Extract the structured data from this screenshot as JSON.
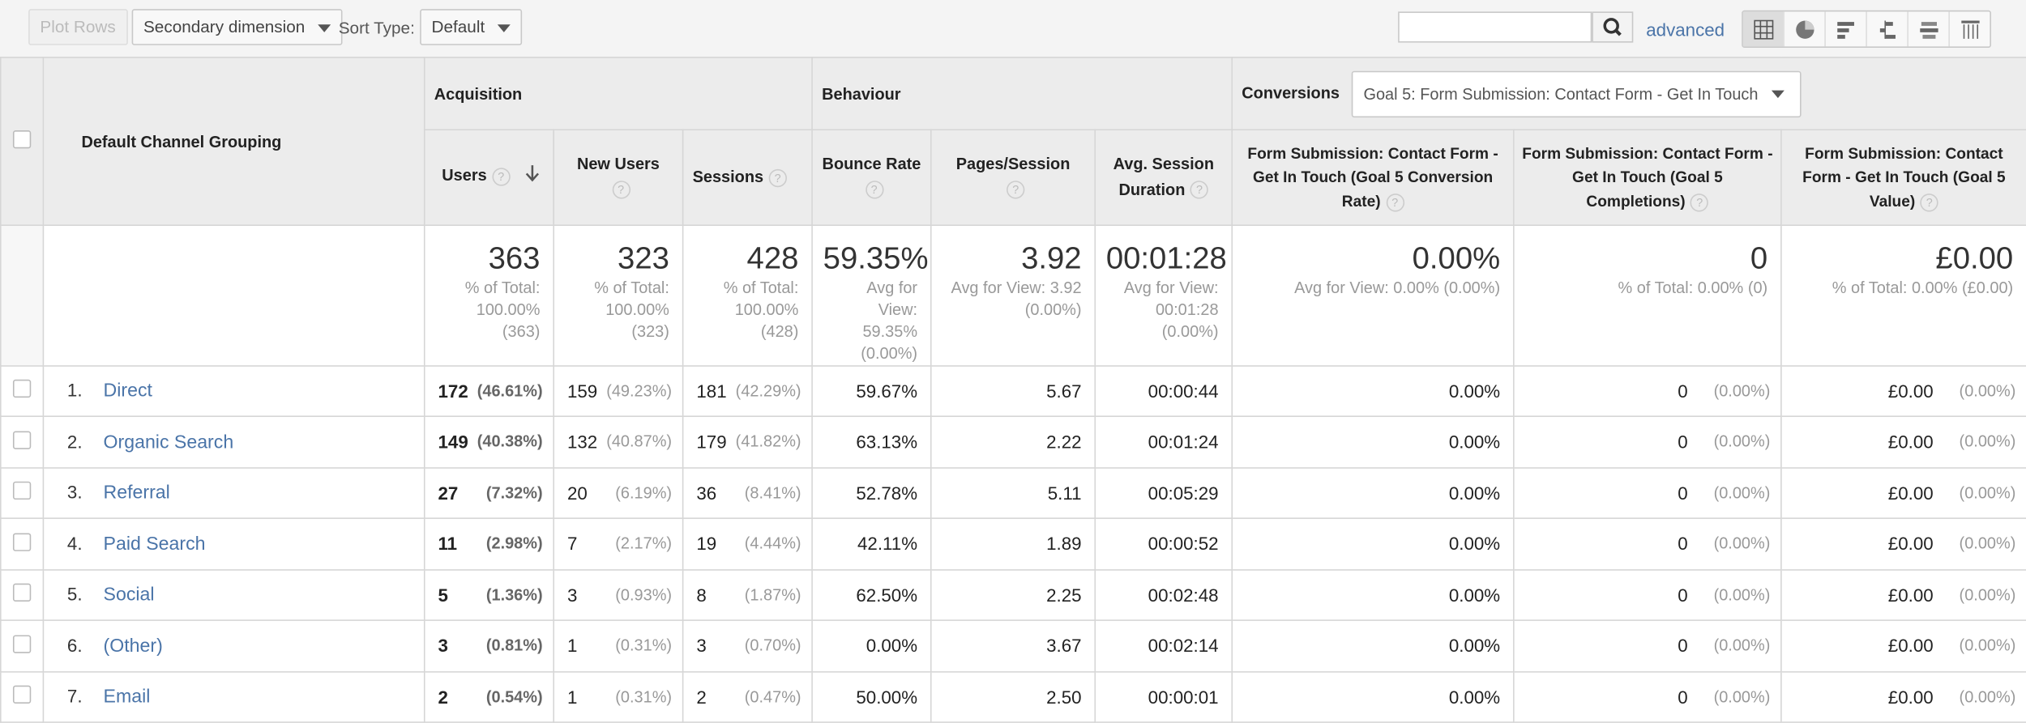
{
  "toolbar": {
    "plot_rows": "Plot Rows",
    "secondary_dimension": "Secondary dimension",
    "sort_type_label": "Sort Type:",
    "sort_type_value": "Default",
    "search_placeholder": "",
    "advanced": "advanced"
  },
  "header": {
    "dimension": "Default Channel Grouping",
    "groups": {
      "acquisition": "Acquisition",
      "behaviour": "Behaviour",
      "conversions": "Conversions"
    },
    "goal_select": "Goal 5: Form Submission: Contact Form - Get In Touch",
    "columns": {
      "users": "Users",
      "new_users": "New Users",
      "sessions": "Sessions",
      "bounce_rate": "Bounce Rate",
      "pages_session": "Pages/Session",
      "avg_session": "Avg. Session Duration",
      "conv_rate": "Form Submission: Contact Form - Get In Touch (Goal 5 Conversion Rate)",
      "completions": "Form Submission: Contact Form - Get In Touch (Goal 5 Completions)",
      "value": "Form Submission: Contact Form - Get In Touch (Goal 5 Value)"
    }
  },
  "totals": {
    "users": {
      "value": "363",
      "sub": "% of Total: 100.00% (363)"
    },
    "new_users": {
      "value": "323",
      "sub": "% of Total: 100.00% (323)"
    },
    "sessions": {
      "value": "428",
      "sub": "% of Total: 100.00% (428)"
    },
    "bounce_rate": {
      "value": "59.35%",
      "sub": "Avg for View: 59.35% (0.00%)"
    },
    "pages_session": {
      "value": "3.92",
      "sub": "Avg for View: 3.92 (0.00%)"
    },
    "avg_session": {
      "value": "00:01:28",
      "sub": "Avg for View: 00:01:28 (0.00%)"
    },
    "conv_rate": {
      "value": "0.00%",
      "sub": "Avg for View: 0.00% (0.00%)"
    },
    "completions": {
      "value": "0",
      "sub": "% of Total: 0.00% (0)"
    },
    "value": {
      "value": "£0.00",
      "sub": "% of Total: 0.00% (£0.00)"
    }
  },
  "rows": [
    {
      "idx": "1.",
      "name": "Direct",
      "users": "172",
      "users_pct": "(46.61%)",
      "new_users": "159",
      "new_users_pct": "(49.23%)",
      "sessions": "181",
      "sessions_pct": "(42.29%)",
      "bounce": "59.67%",
      "pages": "5.67",
      "duration": "00:00:44",
      "conv": "0.00%",
      "comp": "0",
      "comp_pct": "(0.00%)",
      "val": "£0.00",
      "val_pct": "(0.00%)"
    },
    {
      "idx": "2.",
      "name": "Organic Search",
      "users": "149",
      "users_pct": "(40.38%)",
      "new_users": "132",
      "new_users_pct": "(40.87%)",
      "sessions": "179",
      "sessions_pct": "(41.82%)",
      "bounce": "63.13%",
      "pages": "2.22",
      "duration": "00:01:24",
      "conv": "0.00%",
      "comp": "0",
      "comp_pct": "(0.00%)",
      "val": "£0.00",
      "val_pct": "(0.00%)"
    },
    {
      "idx": "3.",
      "name": "Referral",
      "users": "27",
      "users_pct": "(7.32%)",
      "new_users": "20",
      "new_users_pct": "(6.19%)",
      "sessions": "36",
      "sessions_pct": "(8.41%)",
      "bounce": "52.78%",
      "pages": "5.11",
      "duration": "00:05:29",
      "conv": "0.00%",
      "comp": "0",
      "comp_pct": "(0.00%)",
      "val": "£0.00",
      "val_pct": "(0.00%)"
    },
    {
      "idx": "4.",
      "name": "Paid Search",
      "users": "11",
      "users_pct": "(2.98%)",
      "new_users": "7",
      "new_users_pct": "(2.17%)",
      "sessions": "19",
      "sessions_pct": "(4.44%)",
      "bounce": "42.11%",
      "pages": "1.89",
      "duration": "00:00:52",
      "conv": "0.00%",
      "comp": "0",
      "comp_pct": "(0.00%)",
      "val": "£0.00",
      "val_pct": "(0.00%)"
    },
    {
      "idx": "5.",
      "name": "Social",
      "users": "5",
      "users_pct": "(1.36%)",
      "new_users": "3",
      "new_users_pct": "(0.93%)",
      "sessions": "8",
      "sessions_pct": "(1.87%)",
      "bounce": "62.50%",
      "pages": "2.25",
      "duration": "00:02:48",
      "conv": "0.00%",
      "comp": "0",
      "comp_pct": "(0.00%)",
      "val": "£0.00",
      "val_pct": "(0.00%)"
    },
    {
      "idx": "6.",
      "name": "(Other)",
      "users": "3",
      "users_pct": "(0.81%)",
      "new_users": "1",
      "new_users_pct": "(0.31%)",
      "sessions": "3",
      "sessions_pct": "(0.70%)",
      "bounce": "0.00%",
      "pages": "3.67",
      "duration": "00:02:14",
      "conv": "0.00%",
      "comp": "0",
      "comp_pct": "(0.00%)",
      "val": "£0.00",
      "val_pct": "(0.00%)"
    },
    {
      "idx": "7.",
      "name": "Email",
      "users": "2",
      "users_pct": "(0.54%)",
      "new_users": "1",
      "new_users_pct": "(0.31%)",
      "sessions": "2",
      "sessions_pct": "(0.47%)",
      "bounce": "50.00%",
      "pages": "2.50",
      "duration": "00:00:01",
      "conv": "0.00%",
      "comp": "0",
      "comp_pct": "(0.00%)",
      "val": "£0.00",
      "val_pct": "(0.00%)"
    }
  ],
  "icons": {
    "search": "search-icon",
    "help": "help-icon",
    "sort": "sort-desc-icon"
  },
  "colors": {
    "link": "#4a74a8",
    "header_bg": "#ececec"
  }
}
